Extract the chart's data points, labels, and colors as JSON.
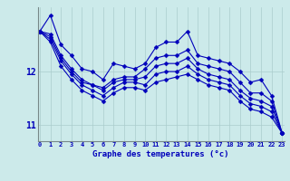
{
  "xlabel": "Graphe des temperatures (°c)",
  "background_color": "#cceaea",
  "grid_color": "#aacccc",
  "line_color": "#0000bb",
  "line_width": 0.8,
  "marker": "D",
  "marker_size": 2.5,
  "ylim": [
    10.7,
    13.2
  ],
  "xlim": [
    -0.2,
    23.2
  ],
  "yticks": [
    11,
    12
  ],
  "xticks": [
    0,
    1,
    2,
    3,
    4,
    5,
    6,
    7,
    8,
    9,
    10,
    11,
    12,
    13,
    14,
    15,
    16,
    17,
    18,
    19,
    20,
    21,
    22,
    23
  ],
  "series": [
    [
      12.75,
      13.05,
      12.5,
      12.3,
      12.05,
      12.0,
      11.85,
      12.15,
      12.1,
      12.05,
      12.15,
      12.45,
      12.55,
      12.55,
      12.75,
      12.3,
      12.25,
      12.2,
      12.15,
      12.0,
      11.8,
      11.85,
      11.55,
      10.85
    ],
    [
      12.75,
      12.7,
      12.3,
      12.05,
      11.85,
      11.75,
      11.7,
      11.85,
      11.9,
      11.9,
      12.05,
      12.25,
      12.3,
      12.3,
      12.4,
      12.15,
      12.1,
      12.05,
      12.0,
      11.8,
      11.6,
      11.6,
      11.45,
      10.85
    ],
    [
      12.75,
      12.65,
      12.25,
      12.0,
      11.8,
      11.75,
      11.65,
      11.8,
      11.85,
      11.85,
      11.9,
      12.1,
      12.15,
      12.15,
      12.25,
      12.05,
      11.95,
      11.9,
      11.85,
      11.65,
      11.5,
      11.45,
      11.35,
      10.85
    ],
    [
      12.75,
      12.6,
      12.2,
      11.95,
      11.75,
      11.65,
      11.55,
      11.7,
      11.8,
      11.8,
      11.75,
      11.95,
      12.0,
      12.0,
      12.1,
      11.95,
      11.85,
      11.8,
      11.75,
      11.55,
      11.4,
      11.35,
      11.25,
      10.85
    ],
    [
      12.75,
      12.55,
      12.1,
      11.85,
      11.65,
      11.55,
      11.45,
      11.6,
      11.7,
      11.7,
      11.65,
      11.8,
      11.85,
      11.9,
      11.95,
      11.85,
      11.75,
      11.7,
      11.65,
      11.45,
      11.3,
      11.25,
      11.15,
      10.85
    ]
  ]
}
